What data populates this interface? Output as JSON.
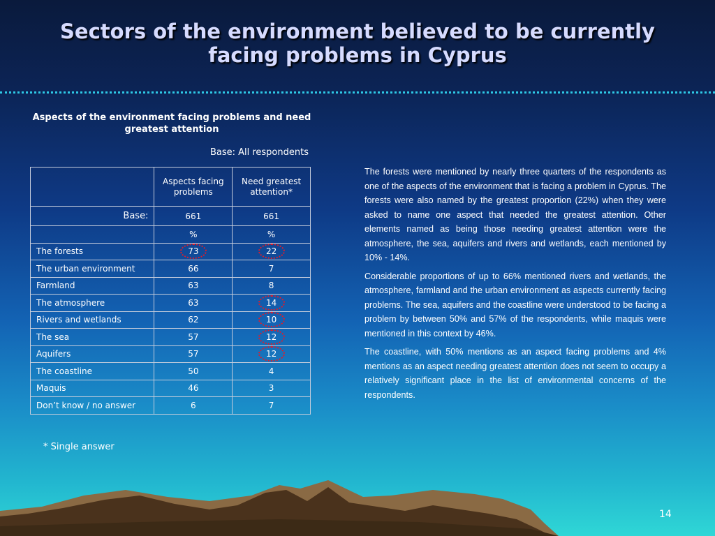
{
  "slide": {
    "title": "Sectors of the environment believed to be currently facing problems in Cyprus",
    "page_number": "14",
    "footnote": "* Single answer"
  },
  "table": {
    "title": "Aspects of the environment facing problems and need greatest attention",
    "base_note": "Base: All respondents",
    "col1_header": "Aspects facing problems",
    "col2_header": "Need greatest attention*",
    "base_label": "Base:",
    "base_values": [
      "661",
      "661"
    ],
    "unit_values": [
      "%",
      "%"
    ],
    "rows": [
      {
        "label": "The forests",
        "problems": "73",
        "attention": "22",
        "problems_circled": true,
        "attention_circled": true
      },
      {
        "label": "The urban environment",
        "problems": "66",
        "attention": "7",
        "problems_circled": false,
        "attention_circled": false
      },
      {
        "label": "Farmland",
        "problems": "63",
        "attention": "8",
        "problems_circled": false,
        "attention_circled": false
      },
      {
        "label": "The atmosphere",
        "problems": "63",
        "attention": "14",
        "problems_circled": false,
        "attention_circled": true
      },
      {
        "label": "Rivers and wetlands",
        "problems": "62",
        "attention": "10",
        "problems_circled": false,
        "attention_circled": true
      },
      {
        "label": "The sea",
        "problems": "57",
        "attention": "12",
        "problems_circled": false,
        "attention_circled": true
      },
      {
        "label": "Aquifers",
        "problems": "57",
        "attention": "12",
        "problems_circled": false,
        "attention_circled": true
      },
      {
        "label": "The coastline",
        "problems": "50",
        "attention": "4",
        "problems_circled": false,
        "attention_circled": false
      },
      {
        "label": "Maquis",
        "problems": "46",
        "attention": "3",
        "problems_circled": false,
        "attention_circled": false
      },
      {
        "label": "Don’t know / no answer",
        "problems": "6",
        "attention": "7",
        "problems_circled": false,
        "attention_circled": false
      }
    ]
  },
  "text": {
    "paragraphs": [
      "The forests were mentioned by nearly three quarters of the respondents as one of the aspects of the environment that is facing a problem in Cyprus. The forests were also named by the greatest proportion (22%) when they were asked to name one aspect that needed the greatest attention. Other elements named as being those needing greatest attention were the atmosphere, the sea, aquifers and rivers and wetlands, each mentioned by 10% - 14%.",
      "Considerable proportions of up to 66% mentioned rivers and wetlands, the atmosphere, farmland and the urban environment as aspects currently facing problems. The sea, aquifers and the coastline were understood to be facing a problem by between 50% and 57% of the respondents, while maquis were mentioned in this context by 46%.",
      "The coastline, with 50% mentions as an aspect facing problems and 4% mentions as an aspect needing greatest attention does not seem to occupy a relatively significant place in the list of environmental concerns of the respondents."
    ]
  },
  "colors": {
    "title_text": "#d6dbff",
    "dotted_rule": "#2ec9e6",
    "highlight_circle": "#e01d2a",
    "mountain_dark": "#4a321c",
    "mountain_light": "#8a6a44",
    "ground": "#3c2a16"
  }
}
